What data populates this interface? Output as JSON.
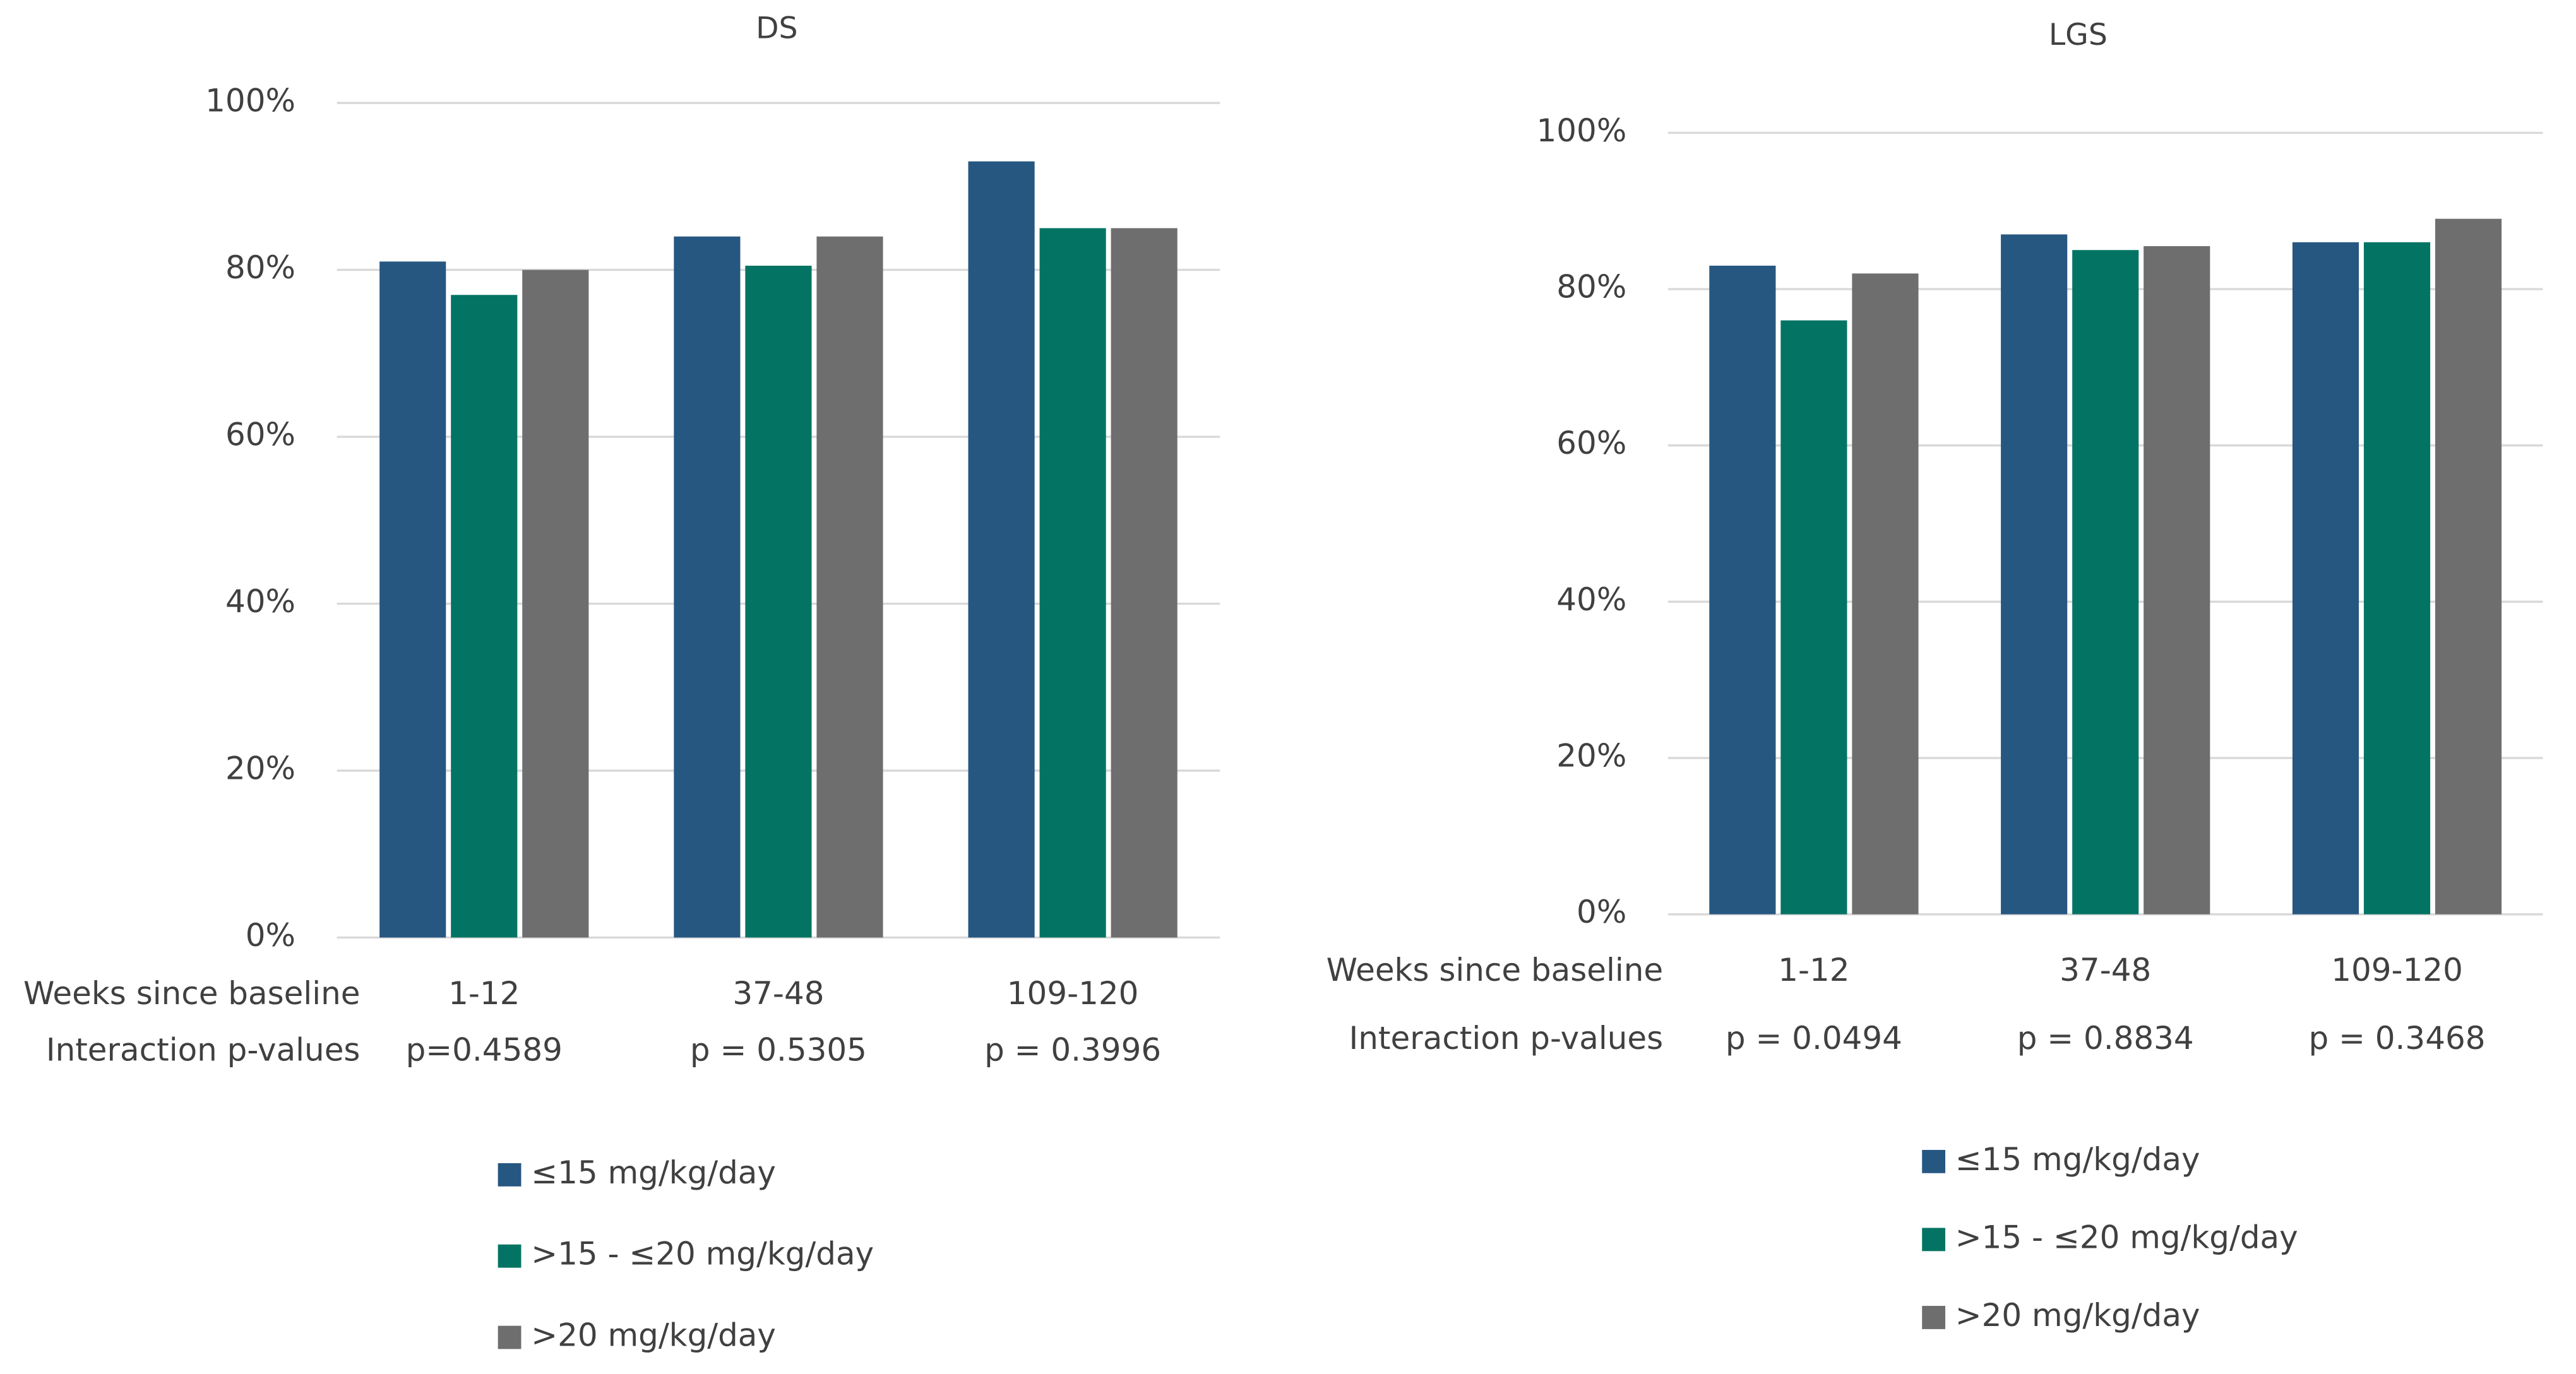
{
  "chart_data": [
    {
      "type": "bar",
      "title": "DS",
      "x_label": "Weeks since baseline",
      "p_value_label": "Interaction p-values",
      "categories": [
        "1-12",
        "37-48",
        "109-120"
      ],
      "p_values": [
        "p=0.4589",
        "p = 0.5305",
        "p = 0.3996"
      ],
      "series": [
        {
          "name": "≤15 mg/kg/day",
          "color": "#265781",
          "values": [
            81,
            84,
            93
          ]
        },
        {
          "name": ">15 - ≤20 mg/kg/day",
          "color": "#037463",
          "values": [
            77,
            80.5,
            85
          ]
        },
        {
          "name": ">20 mg/kg/day",
          "color": "#6e6e6e",
          "values": [
            80,
            84,
            85
          ]
        }
      ],
      "ylim": [
        0,
        100
      ],
      "yticks": [
        {
          "value": 0,
          "label": "0%"
        },
        {
          "value": 20,
          "label": "20%"
        },
        {
          "value": 40,
          "label": "40%"
        },
        {
          "value": 60,
          "label": "60%"
        },
        {
          "value": 80,
          "label": "80%"
        },
        {
          "value": 100,
          "label": "100%"
        }
      ],
      "grid": true
    },
    {
      "type": "bar",
      "title": "LGS",
      "x_label": "Weeks since baseline",
      "p_value_label": "Interaction p-values",
      "categories": [
        "1-12",
        "37-48",
        "109-120"
      ],
      "p_values": [
        "p = 0.0494",
        "p = 0.8834",
        "p = 0.3468"
      ],
      "series": [
        {
          "name": "≤15 mg/kg/day",
          "color": "#265781",
          "values": [
            83,
            87,
            86
          ]
        },
        {
          "name": ">15 - ≤20 mg/kg/day",
          "color": "#037463",
          "values": [
            76,
            85,
            86
          ]
        },
        {
          "name": ">20 mg/kg/day",
          "color": "#6e6e6e",
          "values": [
            82,
            85.5,
            89
          ]
        }
      ],
      "ylim": [
        0,
        100
      ],
      "yticks": [
        {
          "value": 0,
          "label": "0%"
        },
        {
          "value": 20,
          "label": "20%"
        },
        {
          "value": 40,
          "label": "40%"
        },
        {
          "value": 60,
          "label": "60%"
        },
        {
          "value": 80,
          "label": "80%"
        },
        {
          "value": 100,
          "label": "100%"
        }
      ],
      "grid": true
    }
  ]
}
